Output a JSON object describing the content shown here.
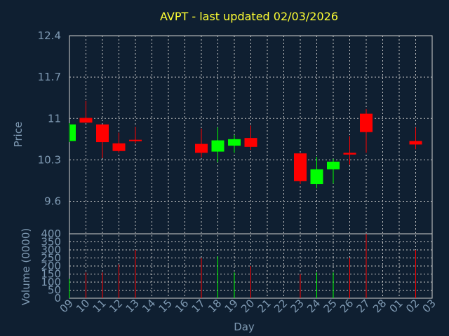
{
  "chart_data": {
    "type": "candlestick",
    "title": "AVPT - last updated 02/03/2026",
    "xlabel": "Day",
    "ylabel_price": "Price",
    "ylabel_volume": "Volume (0000)",
    "x_ticks": [
      "09",
      "10",
      "11",
      "12",
      "13",
      "14",
      "15",
      "16",
      "17",
      "18",
      "19",
      "20",
      "21",
      "22",
      "23",
      "24",
      "25",
      "26",
      "27",
      "28",
      "01",
      "02",
      "03"
    ],
    "price_ticks": [
      "12.4",
      "11.7",
      "11",
      "10.3",
      "9.6"
    ],
    "price_tick_values": [
      12.4,
      11.7,
      11.0,
      10.3,
      9.6
    ],
    "price_ylim": [
      9.05,
      12.4
    ],
    "volume_ticks": [
      "400",
      "350",
      "300",
      "250",
      "200",
      "150",
      "100",
      "50",
      "0"
    ],
    "volume_tick_values": [
      400,
      350,
      300,
      250,
      200,
      150,
      100,
      50,
      0
    ],
    "volume_ylim": [
      0,
      400
    ],
    "grid": true,
    "colors": {
      "up": "#00ff00",
      "down": "#ff0000",
      "title": "#ffff33",
      "axis_text": "#7f9ab3",
      "background": "#0f1f31"
    },
    "candles": [
      {
        "day": "09",
        "open": 10.62,
        "high": 10.92,
        "low": 10.6,
        "close": 10.9,
        "volume": 120
      },
      {
        "day": "10",
        "open": 11.01,
        "high": 11.3,
        "low": 10.94,
        "close": 10.93,
        "volume": 160
      },
      {
        "day": "11",
        "open": 10.9,
        "high": 10.9,
        "low": 10.33,
        "close": 10.6,
        "volume": 160
      },
      {
        "day": "12",
        "open": 10.58,
        "high": 10.76,
        "low": 10.42,
        "close": 10.45,
        "volume": 210
      },
      {
        "day": "13",
        "open": 10.64,
        "high": 10.86,
        "low": 10.58,
        "close": 10.62,
        "volume": 300
      },
      {
        "day": "17",
        "open": 10.57,
        "high": 10.83,
        "low": 10.34,
        "close": 10.42,
        "volume": 250
      },
      {
        "day": "18",
        "open": 10.44,
        "high": 10.85,
        "low": 10.26,
        "close": 10.63,
        "volume": 260
      },
      {
        "day": "19",
        "open": 10.54,
        "high": 10.72,
        "low": 10.42,
        "close": 10.65,
        "volume": 160
      },
      {
        "day": "20",
        "open": 10.67,
        "high": 10.88,
        "low": 10.47,
        "close": 10.52,
        "volume": 200
      },
      {
        "day": "23",
        "open": 10.41,
        "high": 10.41,
        "low": 9.89,
        "close": 9.94,
        "volume": 150
      },
      {
        "day": "24",
        "open": 9.89,
        "high": 10.35,
        "low": 9.82,
        "close": 10.14,
        "volume": 160
      },
      {
        "day": "25",
        "open": 10.14,
        "high": 10.32,
        "low": 9.9,
        "close": 10.27,
        "volume": 160
      },
      {
        "day": "26",
        "open": 10.42,
        "high": 10.7,
        "low": 10.22,
        "close": 10.39,
        "volume": 250
      },
      {
        "day": "27",
        "open": 11.08,
        "high": 11.16,
        "low": 10.42,
        "close": 10.77,
        "volume": 400
      },
      {
        "day": "02",
        "open": 10.62,
        "high": 10.85,
        "low": 10.48,
        "close": 10.56,
        "volume": 300
      }
    ]
  }
}
